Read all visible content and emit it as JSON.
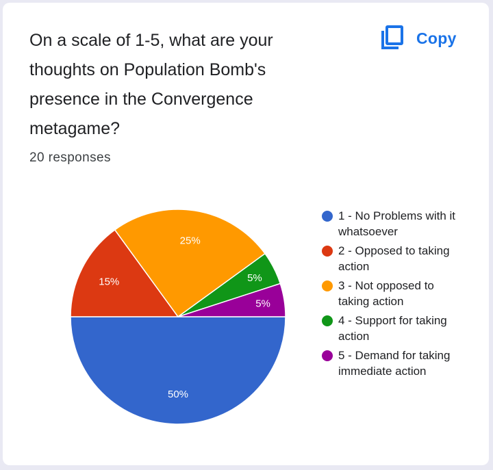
{
  "question": "On a scale of 1-5, what are your thoughts on Population Bomb's presence in the Convergence metagame?",
  "copy_label": "Copy",
  "responses_text": "20 responses",
  "chart_data": {
    "type": "pie",
    "categories": [
      "1 - No Problems with it whatsoever",
      "2 - Opposed to taking action",
      "3 - Not opposed to taking action",
      "4 - Support for taking action",
      "5 - Demand for taking immediate action"
    ],
    "values": [
      50,
      15,
      25,
      5,
      5
    ],
    "labels": [
      "50%",
      "15%",
      "25%",
      "5%",
      "5%"
    ],
    "colors": [
      "#3366cc",
      "#dc3912",
      "#ff9900",
      "#109618",
      "#990099"
    ],
    "legend_position": "right"
  }
}
